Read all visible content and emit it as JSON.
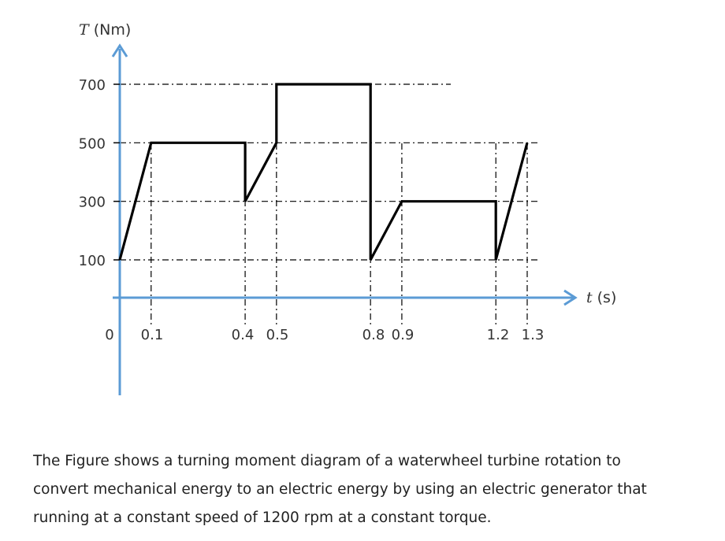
{
  "chart_data": {
    "type": "line",
    "x": [
      0,
      0.1,
      0.4,
      0.4,
      0.5,
      0.5,
      0.8,
      0.8,
      0.9,
      1.2,
      1.2,
      1.3
    ],
    "y": [
      100,
      500,
      500,
      300,
      500,
      700,
      700,
      100,
      300,
      300,
      100,
      500
    ],
    "ylabel": "(Nm)",
    "ylabel_var": "T",
    "xlabel": "(s)",
    "xlabel_var": "t",
    "yticks": [
      "700",
      "500",
      "300",
      "100"
    ],
    "xticks": [
      "0",
      "0.1",
      "0.4",
      "0.5",
      "0.8",
      "0.9",
      "1.2",
      "1.3"
    ],
    "grid": "dash-dot reference lines at 100, 300, 500, 700 and at breakpoints",
    "colors": {
      "axis": "#5b9bd5",
      "line": "#000000",
      "grid": "#000000"
    }
  },
  "caption": "The Figure shows a turning moment diagram of a waterwheel turbine rotation to convert mechanical energy to an electric energy by using an electric generator that running at a constant speed of 1200 rpm at a constant torque."
}
